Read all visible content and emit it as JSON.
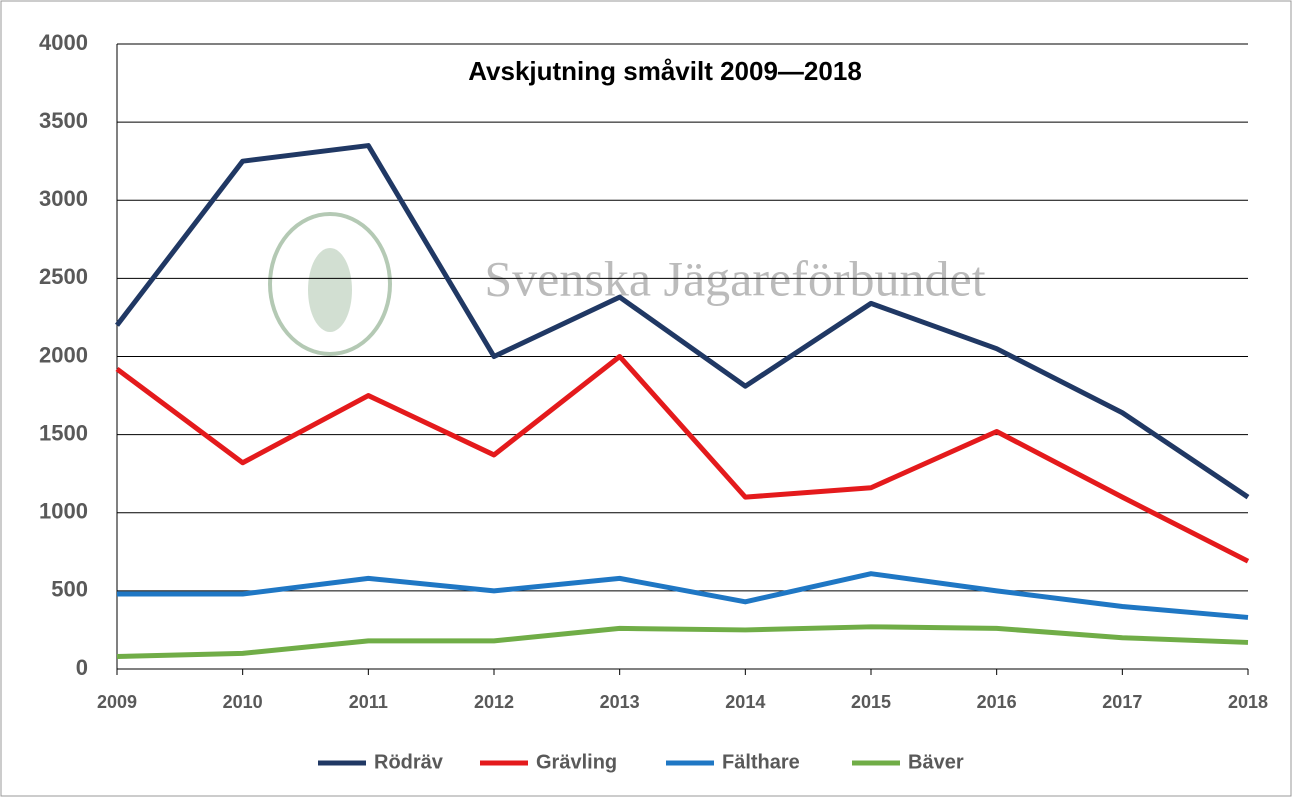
{
  "chart_data": {
    "type": "line",
    "title": "Avskjutning småvilt  2009—2018",
    "watermark": "Svenska Jägareförbundet",
    "categories": [
      "2009",
      "2010",
      "2011",
      "2012",
      "2013",
      "2014",
      "2015",
      "2016",
      "2017",
      "2018"
    ],
    "series": [
      {
        "name": "Rödräv",
        "color": "#203864",
        "values": [
          2200,
          3250,
          3350,
          2000,
          2380,
          1810,
          2340,
          2050,
          1640,
          1100
        ]
      },
      {
        "name": "Grävling",
        "color": "#e41a1c",
        "values": [
          1920,
          1320,
          1750,
          1370,
          2000,
          1100,
          1160,
          1520,
          1100,
          690
        ]
      },
      {
        "name": "Fälthare",
        "color": "#1f77c4",
        "values": [
          480,
          480,
          580,
          500,
          580,
          430,
          610,
          500,
          400,
          330
        ]
      },
      {
        "name": "Bäver",
        "color": "#70ad47",
        "values": [
          80,
          100,
          180,
          180,
          260,
          250,
          270,
          260,
          200,
          170
        ]
      }
    ],
    "ylim": [
      0,
      4000
    ],
    "yticks": [
      0,
      500,
      1000,
      1500,
      2000,
      2500,
      3000,
      3500,
      4000
    ],
    "grid": true,
    "legend": "bottom"
  }
}
